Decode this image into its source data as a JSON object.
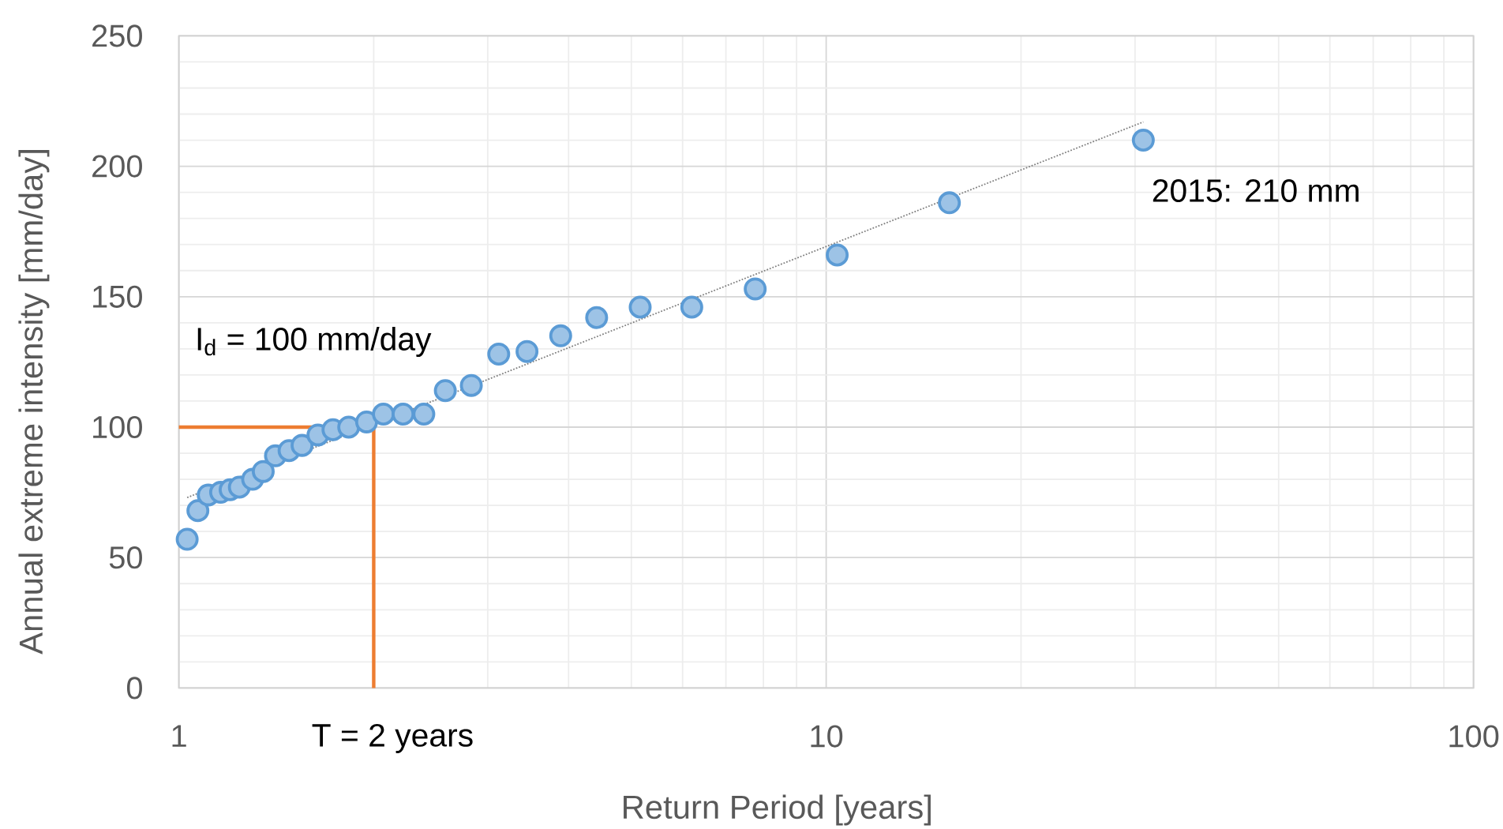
{
  "chart_data": {
    "type": "scatter",
    "xlabel": "Return Period [years]",
    "ylabel": "Annual extreme intensity [mm/day]",
    "series": [
      {
        "type": "line",
        "color": "#ed7d31",
        "x": [
          1,
          2,
          2
        ],
        "values": [
          100,
          100,
          0
        ],
        "marker": "none",
        "line_style": "solid"
      },
      {
        "color": "#5b9bd5",
        "marker": "circle",
        "x": [
          1.03,
          1.07,
          1.11,
          1.16,
          1.2,
          1.24,
          1.3,
          1.35,
          1.41,
          1.48,
          1.55,
          1.64,
          1.73,
          1.83,
          1.95,
          2.07,
          2.22,
          2.39,
          2.58,
          2.83,
          3.12,
          3.45,
          3.89,
          4.42,
          5.16,
          6.2,
          7.77,
          10.4,
          15.5,
          30.9
        ],
        "values": [
          57,
          68,
          74,
          75,
          76,
          77,
          80,
          83,
          89,
          91,
          93,
          97,
          99,
          100,
          102,
          105,
          105,
          105,
          114,
          116,
          128,
          129,
          135,
          142,
          146,
          146,
          153,
          166,
          186,
          210
        ]
      },
      {
        "type": "line",
        "color": "#808080",
        "x": [
          1.03,
          30.9
        ],
        "values": [
          73,
          217
        ],
        "marker": "none",
        "line_style": "dotted"
      }
    ],
    "log": "x",
    "xlim": [
      1,
      100
    ],
    "ylim": [
      0,
      250
    ],
    "xticks": [
      1,
      10,
      100
    ],
    "yticks": [
      0,
      50,
      100,
      150,
      200,
      250
    ],
    "grid": true,
    "annotations": [
      {
        "text": "2015: 210 mm",
        "x": 30.9,
        "y": 210
      },
      {
        "text": "I$_{d}$ = 100 mm/day",
        "x": 1,
        "y": 100
      },
      {
        "text": "T = 2 years",
        "x": 2,
        "y": 0
      }
    ]
  }
}
